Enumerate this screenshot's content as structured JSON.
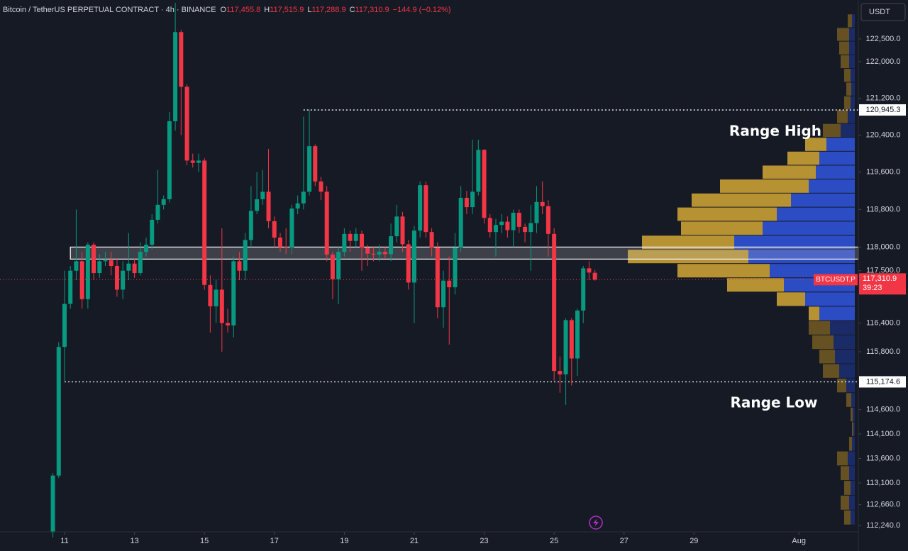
{
  "chart_data": {
    "type": "candlestick",
    "header": {
      "symbol": "Bitcoin / TetherUS PERPETUAL CONTRACT · 4h · BINANCE",
      "o_label": "O",
      "o": "117,455.8",
      "h_label": "H",
      "h": "117,515.9",
      "l_label": "L",
      "l": "117,288.9",
      "c_label": "C",
      "c": "117,310.9",
      "change": "−144.9 (−0.12%)"
    },
    "currency_button": "USDT",
    "log_scale": true,
    "up_color": "#089981",
    "down_color": "#f23645",
    "xlim": [
      9.154,
      33.7
    ],
    "xticks": [
      11,
      13,
      15,
      17,
      19,
      21,
      23,
      25,
      27,
      29,
      {
        "value": 32,
        "label": "Aug"
      }
    ],
    "ylim": [
      112110,
      123360
    ],
    "yticks": [
      {
        "value": 122500,
        "label": "122,500.0"
      },
      {
        "value": 122000,
        "label": "122,000.0"
      },
      {
        "value": 121200,
        "label": "121,200.0"
      },
      {
        "value": 120400,
        "label": "120,400.0"
      },
      {
        "value": 119600,
        "label": "119,600.0"
      },
      {
        "value": 118800,
        "label": "118,800.0"
      },
      {
        "value": 118000,
        "label": "118,000.0"
      },
      {
        "value": 117500,
        "label": "117,500.0"
      },
      {
        "value": 116400,
        "label": "116,400.0"
      },
      {
        "value": 115800,
        "label": "115,800.0"
      },
      {
        "value": 114600,
        "label": "114,600.0"
      },
      {
        "value": 114100,
        "label": "114,100.0"
      },
      {
        "value": 113600,
        "label": "113,600.0"
      },
      {
        "value": 113100,
        "label": "113,100.0"
      },
      {
        "value": 112660,
        "label": "112,660.0"
      },
      {
        "value": 112240,
        "label": "112,240.0"
      }
    ],
    "x": [
      10.6667,
      10.8333,
      11,
      11.1667,
      11.3333,
      11.5,
      11.6667,
      11.8333,
      12,
      12.1667,
      12.3333,
      12.5,
      12.6667,
      12.8333,
      13,
      13.1667,
      13.3333,
      13.5,
      13.6667,
      13.8333,
      14,
      14.1667,
      14.3333,
      14.5,
      14.6667,
      14.8333,
      15,
      15.1667,
      15.3333,
      15.5,
      15.6667,
      15.8333,
      16,
      16.1667,
      16.3333,
      16.5,
      16.6667,
      16.8333,
      17,
      17.1667,
      17.3333,
      17.5,
      17.6667,
      17.8333,
      18,
      18.1667,
      18.3333,
      18.5,
      18.6667,
      18.8333,
      19,
      19.1667,
      19.3333,
      19.5,
      19.6667,
      19.8333,
      20,
      20.1667,
      20.3333,
      20.5,
      20.6667,
      20.8333,
      21,
      21.1667,
      21.3333,
      21.5,
      21.6667,
      21.8333,
      22,
      22.1667,
      22.3333,
      22.5,
      22.6667,
      22.8333,
      23,
      23.1667,
      23.3333,
      23.5,
      23.6667,
      23.8333,
      24,
      24.1667,
      24.3333,
      24.5,
      24.6667,
      24.8333,
      25,
      25.1667,
      25.3333,
      25.5,
      25.6667,
      25.8333,
      26,
      26.1667
    ],
    "open": [
      112100,
      113250,
      115900,
      116800,
      117500,
      117700,
      116900,
      118050,
      117450,
      117700,
      117720,
      117600,
      117100,
      117500,
      117650,
      117450,
      117900,
      118050,
      118580,
      118900,
      119020,
      120700,
      122650,
      121450,
      119850,
      119800,
      119850,
      117200,
      116750,
      117100,
      116400,
      116350,
      117700,
      117500,
      118150,
      118770,
      119020,
      119180,
      118550,
      118200,
      118000,
      117990,
      118820,
      118930,
      119180,
      120160,
      119400,
      119180,
      117840,
      117320,
      117900,
      118280,
      118130,
      118280,
      117990,
      117860,
      117840,
      117900,
      117850,
      118230,
      118650,
      118060,
      117250,
      118350,
      119320,
      118320,
      117990,
      116730,
      117290,
      117150,
      117990,
      119050,
      118850,
      119180,
      120080,
      118620,
      118320,
      118470,
      118540,
      118360,
      118730,
      118430,
      118320,
      118510,
      118960,
      118870,
      118280,
      115400,
      115330,
      116460,
      115660,
      116660,
      117550,
      117455.8
    ],
    "high": [
      113300,
      116000,
      117500,
      117600,
      118800,
      117900,
      118100,
      118100,
      117850,
      117900,
      117900,
      117750,
      117700,
      118300,
      117750,
      118100,
      118200,
      118700,
      119650,
      119100,
      120900,
      123300,
      122700,
      121500,
      120000,
      120000,
      119900,
      117400,
      117300,
      118400,
      116700,
      117800,
      117900,
      118300,
      119300,
      119600,
      119650,
      120100,
      118650,
      118300,
      118400,
      118900,
      119100,
      120800,
      120950,
      120200,
      119500,
      119300,
      117900,
      118000,
      118400,
      118350,
      118400,
      118350,
      118050,
      118000,
      118050,
      118000,
      118500,
      118900,
      118750,
      118150,
      118450,
      119400,
      119400,
      118400,
      118100,
      117500,
      117800,
      118300,
      119300,
      119200,
      120300,
      120300,
      120100,
      118700,
      118600,
      118700,
      118650,
      118800,
      118800,
      118500,
      118900,
      119300,
      119400,
      119000,
      118400,
      115700,
      116500,
      116500,
      116700,
      117600,
      117700,
      117515.9
    ],
    "low": [
      112000,
      113200,
      115200,
      116700,
      117300,
      116700,
      116700,
      117300,
      117350,
      117600,
      117400,
      116950,
      116900,
      117300,
      117350,
      117400,
      117800,
      117950,
      118500,
      118800,
      118950,
      120500,
      120400,
      119750,
      119700,
      119600,
      117100,
      116200,
      116400,
      115800,
      116200,
      116100,
      117300,
      117300,
      118000,
      118700,
      118900,
      118400,
      118000,
      117900,
      117850,
      117850,
      118700,
      118800,
      119100,
      119300,
      119000,
      117700,
      116900,
      116800,
      117800,
      117900,
      118000,
      117500,
      117600,
      117700,
      117700,
      117750,
      117700,
      118100,
      117900,
      117100,
      116400,
      118200,
      118200,
      117800,
      116500,
      116300,
      115950,
      117000,
      117900,
      118700,
      118700,
      119100,
      118500,
      118200,
      117800,
      118300,
      118200,
      118000,
      118300,
      118100,
      117500,
      118300,
      118700,
      117800,
      115200,
      114950,
      114700,
      115100,
      115300,
      116400,
      117300,
      117288.9
    ],
    "close": [
      113250,
      115900,
      116800,
      117500,
      117700,
      116900,
      118050,
      117450,
      117700,
      117720,
      117600,
      117100,
      117500,
      117650,
      117450,
      117900,
      118050,
      118580,
      118900,
      119020,
      120700,
      122650,
      121450,
      119850,
      119800,
      119850,
      117200,
      116750,
      117100,
      116400,
      116350,
      117700,
      117500,
      118150,
      118770,
      119020,
      119180,
      118550,
      118200,
      118000,
      117990,
      118820,
      118930,
      119180,
      120160,
      119400,
      119180,
      117840,
      117320,
      117900,
      118280,
      118130,
      118280,
      117990,
      117860,
      117840,
      117900,
      117850,
      118230,
      118650,
      118060,
      117250,
      118350,
      119320,
      118320,
      117990,
      116730,
      117290,
      117150,
      117990,
      119050,
      118850,
      119180,
      120080,
      118620,
      118320,
      118470,
      118540,
      118360,
      118730,
      118430,
      118320,
      118510,
      118960,
      118870,
      118280,
      115400,
      115330,
      116460,
      115660,
      116660,
      117550,
      117460,
      117310.9
    ],
    "volume_profile": {
      "prices": [
        122900,
        122600,
        122300,
        122000,
        121700,
        121400,
        121100,
        120800,
        120500,
        120200,
        119900,
        119600,
        119300,
        119000,
        118700,
        118400,
        118100,
        117800,
        117500,
        117200,
        116900,
        116600,
        116300,
        116000,
        115700,
        115400,
        115100,
        114800,
        114500,
        114200,
        113900,
        113600,
        113300,
        113000,
        112700,
        112400
      ],
      "series": [
        {
          "color": "#2f52d6",
          "color_outside": "#1c2d70",
          "values": [
            4,
            8,
            8,
            8,
            6,
            5,
            6,
            10,
            20,
            40,
            50,
            55,
            65,
            90,
            110,
            130,
            170,
            150,
            120,
            100,
            70,
            50,
            35,
            30,
            28,
            22,
            12,
            5,
            3,
            2,
            4,
            10,
            8,
            6,
            8,
            6
          ]
        },
        {
          "color": "#c9a035",
          "color_outside": "#6e5822",
          "values": [
            6,
            17,
            14,
            12,
            9,
            7,
            9,
            15,
            25,
            30,
            45,
            75,
            125,
            140,
            140,
            115,
            130,
            170,
            130,
            80,
            40,
            15,
            30,
            30,
            22,
            23,
            13,
            7,
            3,
            2,
            4,
            15,
            12,
            9,
            12,
            9
          ]
        }
      ],
      "value_area": [
        116400,
        120300
      ]
    },
    "zone": {
      "top": 118000,
      "bottom": 117745,
      "from": 11.1667
    },
    "levels": [
      {
        "value": 120945.3,
        "label": "120,945.3",
        "from": 17.8333,
        "annotation": "Range High"
      },
      {
        "value": 115174.6,
        "label": "115,174.6",
        "from": 11,
        "annotation": "Range Low"
      }
    ],
    "last_price": {
      "value": 117310.9,
      "label": "117,310.9",
      "symbol": "BTCUSDT.P",
      "countdown": "39:23"
    }
  }
}
